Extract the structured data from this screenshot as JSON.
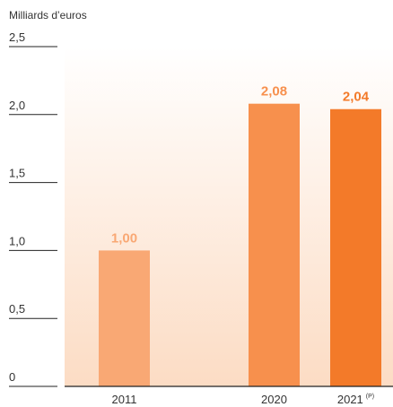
{
  "chart_data": {
    "type": "bar",
    "ylabel": "Milliards d’euros",
    "ylim": [
      0,
      2.5
    ],
    "yticks": [
      {
        "value": 0,
        "label": "0"
      },
      {
        "value": 0.5,
        "label": "0,5"
      },
      {
        "value": 1.0,
        "label": "1,0"
      },
      {
        "value": 1.5,
        "label": "1,5"
      },
      {
        "value": 2.0,
        "label": "2,0"
      },
      {
        "value": 2.5,
        "label": "2,5"
      }
    ],
    "categories": [
      "2011",
      "2020",
      "2021"
    ],
    "category_notes": [
      "",
      "",
      "(P)"
    ],
    "values": [
      1.0,
      2.08,
      2.04
    ],
    "value_labels": [
      "1,00",
      "2,08",
      "2,04"
    ],
    "grid": false,
    "colors": {
      "bars": [
        "#f9a874",
        "#f7904d",
        "#f37a29"
      ],
      "value_labels": [
        "#f9a874",
        "#f7904d",
        "#f37a29"
      ],
      "background_top": "#ffffff",
      "background_bottom": "#fcdcc4",
      "axis": "#222222"
    }
  }
}
